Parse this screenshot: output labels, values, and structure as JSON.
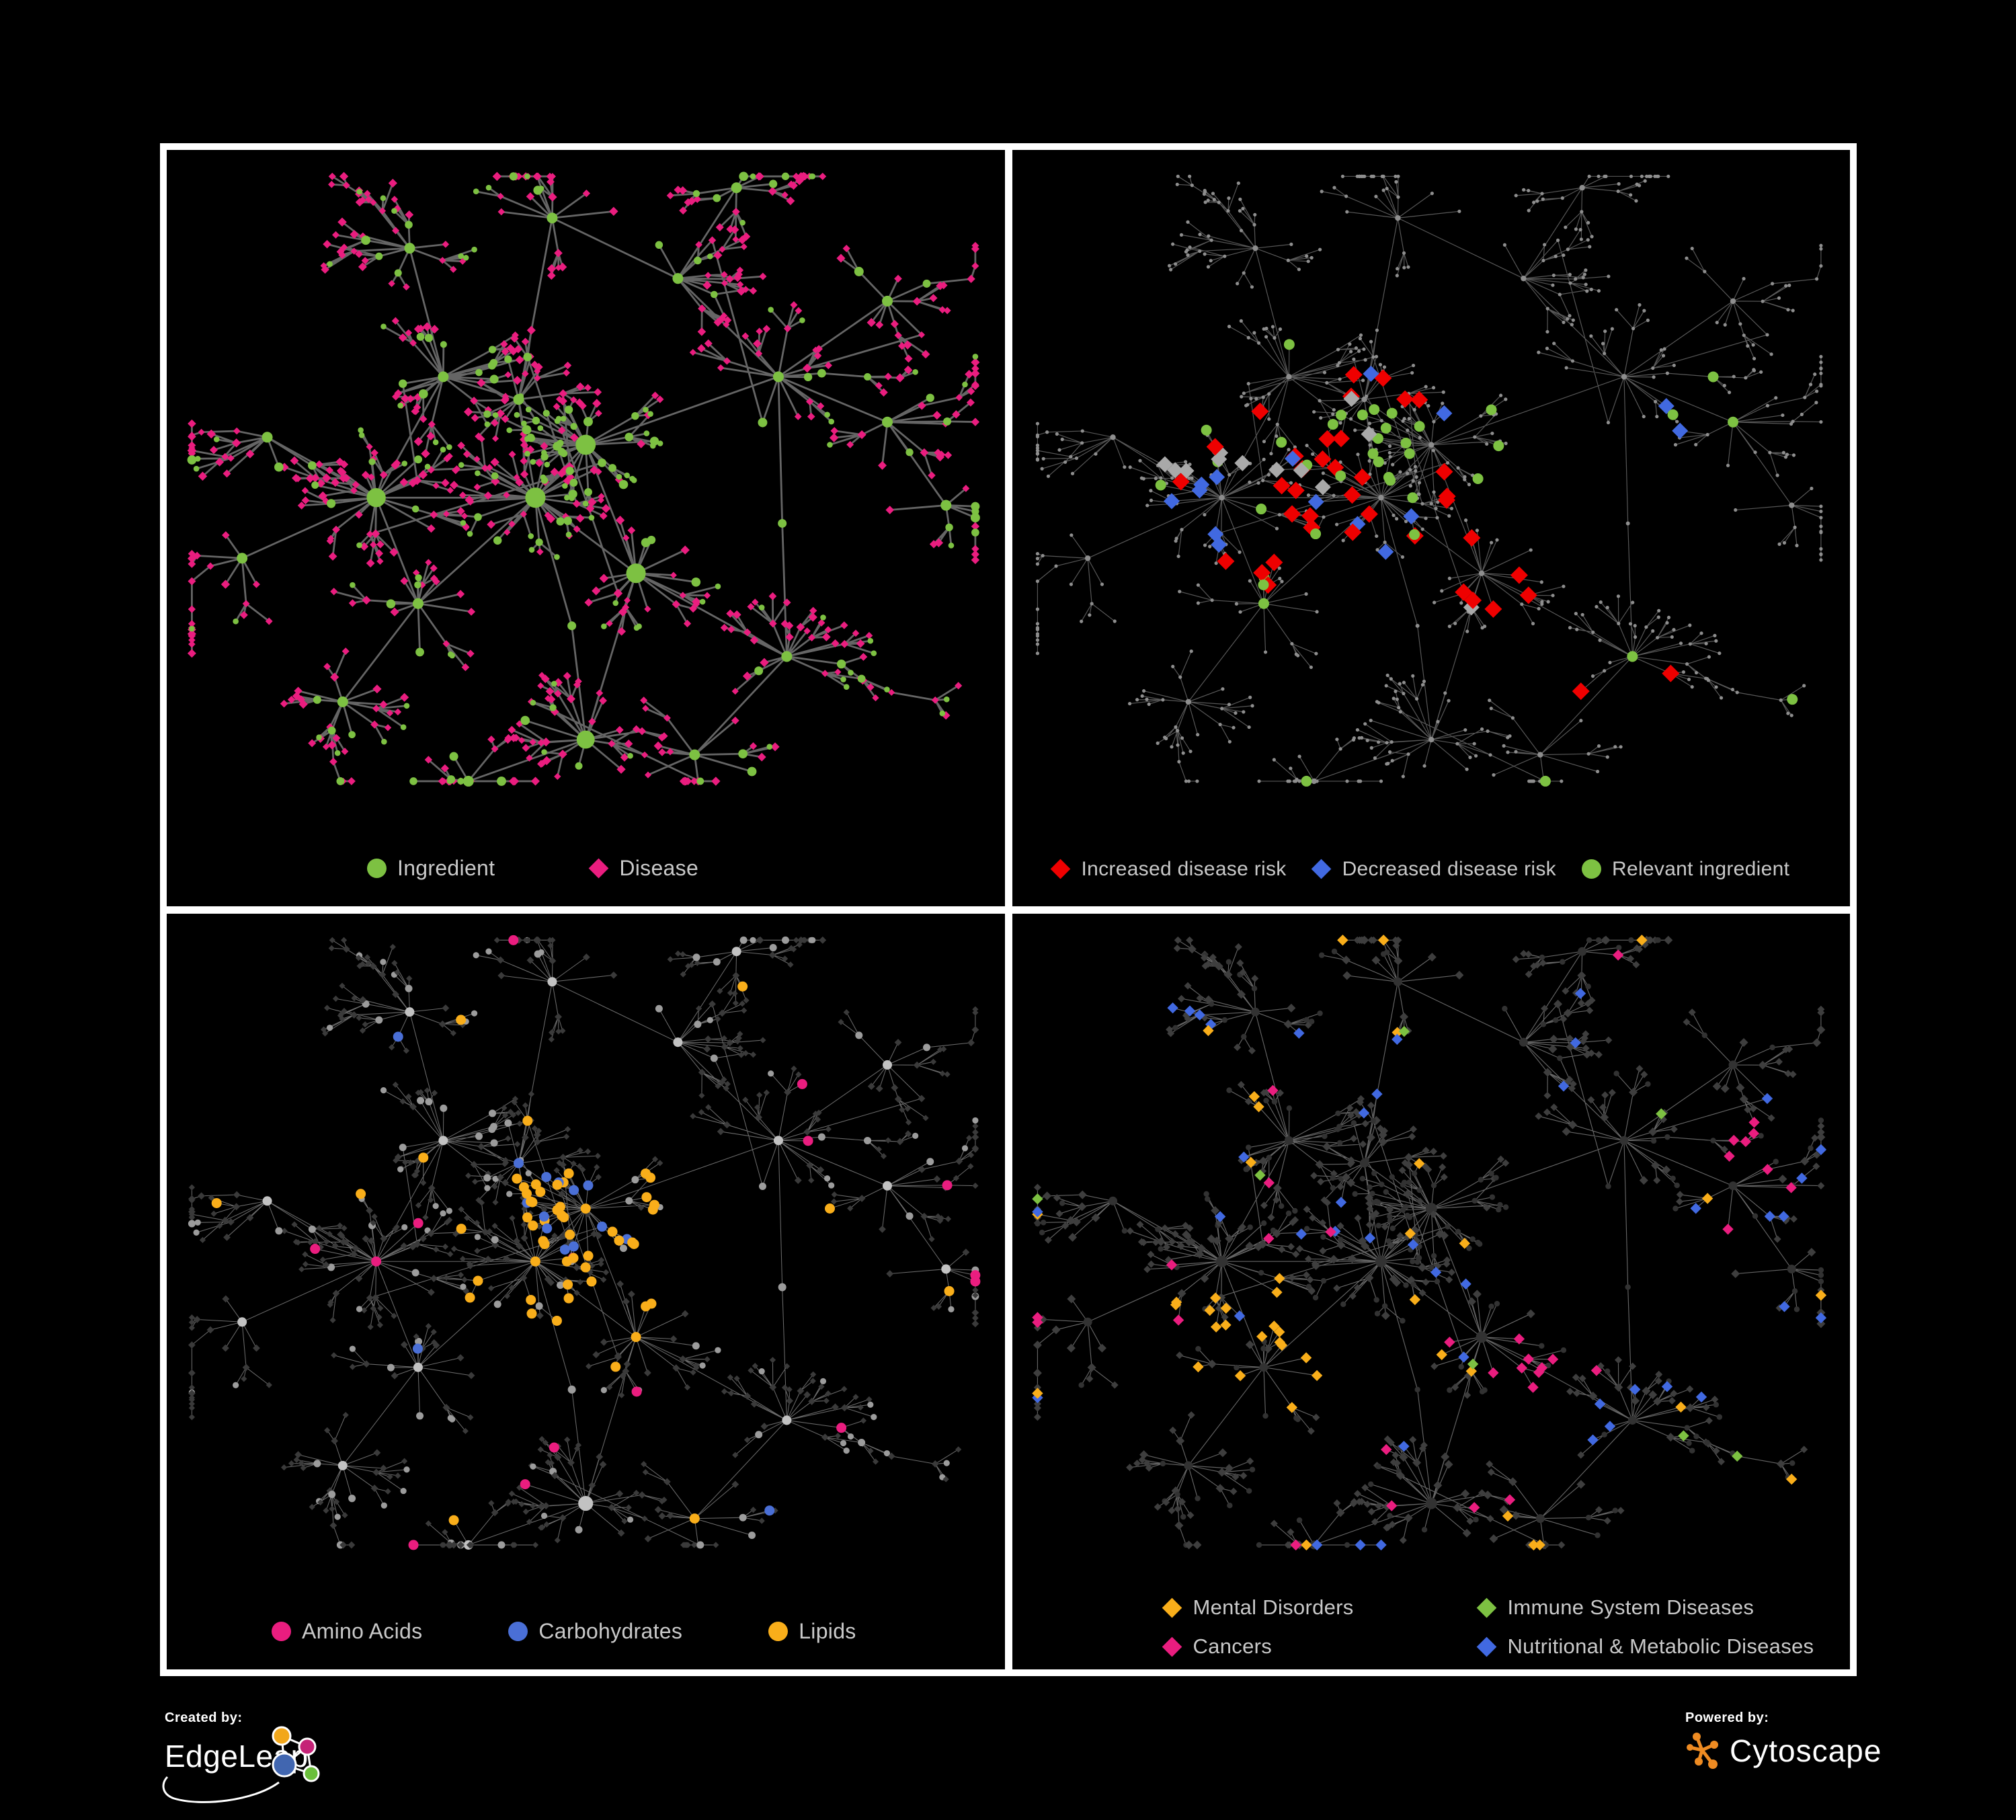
{
  "page": {
    "background": "#000000",
    "frame_color": "#FFFFFF",
    "legend_text_color": "#C9C9C9"
  },
  "panels": [
    {
      "id": "ingredient-disease",
      "edge_color": "#6E6E6E",
      "colors": {
        "ingredient": "#7DC142",
        "disease": "#EA1D7F"
      },
      "legend": [
        {
          "label": "Ingredient",
          "shape": "circle",
          "color": "#7DC142"
        },
        {
          "label": "Disease",
          "shape": "diamond",
          "color": "#EA1D7F"
        }
      ]
    },
    {
      "id": "disease-risk",
      "edge_color": "#666666",
      "base_color": "#8E8E8E",
      "colors": {
        "increased": "#EF0000",
        "decreased": "#4169E1",
        "neutral": "#A9A9A9",
        "relevant": "#7DC142"
      },
      "legend": [
        {
          "label": "Increased disease risk",
          "shape": "diamond",
          "color": "#EF0000"
        },
        {
          "label": "Decreased disease risk",
          "shape": "diamond",
          "color": "#4169E1"
        },
        {
          "label": "Relevant ingredient",
          "shape": "circle",
          "color": "#7DC142"
        }
      ]
    },
    {
      "id": "nutrient-classes",
      "edge_color": "#979797",
      "base_circle": "#9C9C9C",
      "hub_circle": "#C2C2C2",
      "base_diamond": "#3A3A3A",
      "colors": {
        "amino_acids": "#EA1D7F",
        "carbohydrates": "#4A6FD6",
        "lipids": "#F9AE1A"
      },
      "legend": [
        {
          "label": "Amino Acids",
          "shape": "circle",
          "color": "#EA1D7F"
        },
        {
          "label": "Carbohydrates",
          "shape": "circle",
          "color": "#4A6FD6"
        },
        {
          "label": "Lipids",
          "shape": "circle",
          "color": "#F9AE1A"
        }
      ]
    },
    {
      "id": "disease-categories",
      "edge_color": "#7E7E7E",
      "base_circle": "#323232",
      "base_diamond": "#3E3E3E",
      "colors": {
        "mental": "#F9AE1A",
        "immune": "#7DC142",
        "cancers": "#EA1D7F",
        "nutritional": "#4169E1"
      },
      "legend": [
        {
          "label": "Mental Disorders",
          "shape": "diamond",
          "color": "#F9AE1A"
        },
        {
          "label": "Immune System Diseases",
          "shape": "diamond",
          "color": "#7DC142"
        },
        {
          "label": "Cancers",
          "shape": "diamond",
          "color": "#EA1D7F"
        },
        {
          "label": "Nutritional & Metabolic Diseases",
          "shape": "diamond",
          "color": "#4169E1"
        }
      ]
    }
  ],
  "footer": {
    "created": {
      "prefix": "Created by:",
      "brand": "EdgeLeap",
      "logo_colors": {
        "orange": "#F2A71B",
        "pink": "#C52277",
        "blue": "#4166B0",
        "green": "#6ABF3A",
        "line": "#FFFFFF"
      }
    },
    "powered": {
      "prefix": "Powered by:",
      "brand": "Cytoscape",
      "logo_color": "#EE8B22"
    }
  }
}
